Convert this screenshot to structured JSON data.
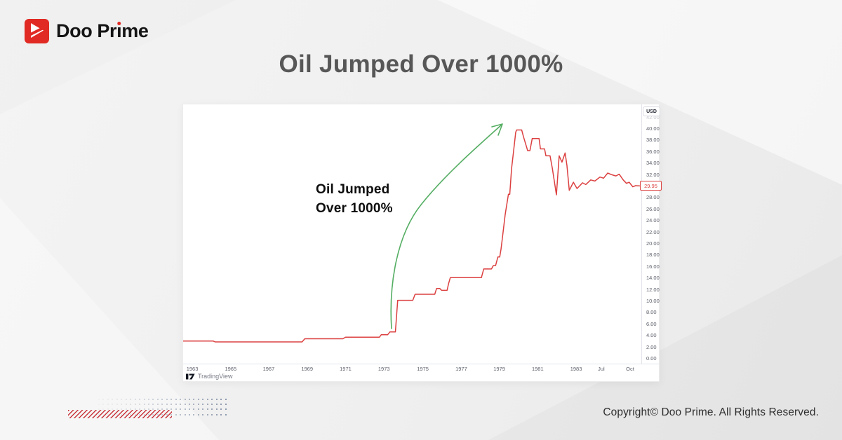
{
  "brand": {
    "name": "Doo Prime",
    "logo_icon": "doo-prime-arrow-mark"
  },
  "title": "Oil Jumped Over 1000%",
  "chart_panel": {
    "annotation_line1": "Oil Jumped",
    "annotation_line2": "Over 1000%",
    "price_axis": {
      "currency_label": "USD",
      "faint_top_label": "42.00",
      "ticks": [
        "40.00",
        "38.00",
        "36.00",
        "34.00",
        "32.00",
        "30.00",
        "28.00",
        "26.00",
        "24.00",
        "22.00",
        "20.00",
        "18.00",
        "16.00",
        "14.00",
        "12.00",
        "10.00",
        "8.00",
        "6.00",
        "4.00",
        "2.00",
        "0.00"
      ],
      "last_price_label": "29.95"
    },
    "attribution": "TradingView"
  },
  "chart_data": {
    "type": "line",
    "series_name": "oil-price-usd",
    "ylabel": "USD",
    "ylim": [
      0,
      42
    ],
    "grid": false,
    "legend": "none",
    "line_color": "#dc4040",
    "last_price": 29.95,
    "x_ticks": [
      {
        "label": "1963",
        "pos": 0.02
      },
      {
        "label": "1965",
        "pos": 0.104
      },
      {
        "label": "1967",
        "pos": 0.187
      },
      {
        "label": "1969",
        "pos": 0.271
      },
      {
        "label": "1971",
        "pos": 0.355
      },
      {
        "label": "1973",
        "pos": 0.439
      },
      {
        "label": "1975",
        "pos": 0.524
      },
      {
        "label": "1977",
        "pos": 0.608
      },
      {
        "label": "1979",
        "pos": 0.691
      },
      {
        "label": "1981",
        "pos": 0.775
      },
      {
        "label": "1983",
        "pos": 0.859
      },
      {
        "label": "Jul",
        "pos": 0.914
      },
      {
        "label": "Oct",
        "pos": 0.977
      }
    ],
    "points": [
      [
        0.0,
        2.95
      ],
      [
        0.066,
        2.95
      ],
      [
        0.07,
        2.8
      ],
      [
        0.26,
        2.8
      ],
      [
        0.266,
        3.35
      ],
      [
        0.349,
        3.35
      ],
      [
        0.355,
        3.62
      ],
      [
        0.429,
        3.62
      ],
      [
        0.433,
        4.05
      ],
      [
        0.447,
        4.05
      ],
      [
        0.452,
        4.55
      ],
      [
        0.464,
        4.55
      ],
      [
        0.469,
        10.05
      ],
      [
        0.502,
        10.05
      ],
      [
        0.507,
        11.1
      ],
      [
        0.55,
        11.1
      ],
      [
        0.554,
        12.1
      ],
      [
        0.561,
        12.1
      ],
      [
        0.565,
        11.78
      ],
      [
        0.577,
        11.78
      ],
      [
        0.58,
        12.9
      ],
      [
        0.584,
        14.0
      ],
      [
        0.652,
        14.0
      ],
      [
        0.657,
        15.5
      ],
      [
        0.674,
        15.5
      ],
      [
        0.678,
        16.1
      ],
      [
        0.683,
        16.1
      ],
      [
        0.688,
        17.6
      ],
      [
        0.692,
        17.6
      ],
      [
        0.695,
        19.0
      ],
      [
        0.698,
        21.0
      ],
      [
        0.704,
        25.0
      ],
      [
        0.711,
        28.5
      ],
      [
        0.714,
        28.5
      ],
      [
        0.718,
        33.0
      ],
      [
        0.723,
        36.5
      ],
      [
        0.727,
        39.3
      ],
      [
        0.729,
        39.7
      ],
      [
        0.74,
        39.7
      ],
      [
        0.744,
        38.5
      ],
      [
        0.753,
        36.1
      ],
      [
        0.758,
        36.1
      ],
      [
        0.763,
        38.2
      ],
      [
        0.778,
        38.2
      ],
      [
        0.781,
        36.4
      ],
      [
        0.79,
        36.4
      ],
      [
        0.793,
        35.2
      ],
      [
        0.802,
        35.2
      ],
      [
        0.807,
        33.0
      ],
      [
        0.816,
        28.4
      ],
      [
        0.822,
        35.2
      ],
      [
        0.828,
        34.1
      ],
      [
        0.835,
        35.7
      ],
      [
        0.839,
        33.5
      ],
      [
        0.844,
        29.2
      ],
      [
        0.853,
        30.6
      ],
      [
        0.861,
        29.5
      ],
      [
        0.873,
        30.5
      ],
      [
        0.88,
        30.2
      ],
      [
        0.891,
        31.0
      ],
      [
        0.9,
        30.8
      ],
      [
        0.911,
        31.5
      ],
      [
        0.919,
        31.3
      ],
      [
        0.928,
        32.2
      ],
      [
        0.937,
        31.9
      ],
      [
        0.946,
        31.7
      ],
      [
        0.953,
        32.0
      ],
      [
        0.962,
        31.0
      ],
      [
        0.969,
        30.4
      ],
      [
        0.975,
        30.6
      ],
      [
        0.983,
        29.8
      ],
      [
        0.989,
        30.0
      ],
      [
        0.999,
        29.95
      ]
    ]
  },
  "footer": {
    "copyright": "Copyright© Doo Prime. All Rights Reserved."
  },
  "colors": {
    "brand_red": "#e02a23",
    "line_red": "#dc4040",
    "arrow_green": "#55ae63",
    "title_gray": "#575757",
    "dots_blue_gray": "#8794a8",
    "hatch_red": "#c8353b"
  }
}
